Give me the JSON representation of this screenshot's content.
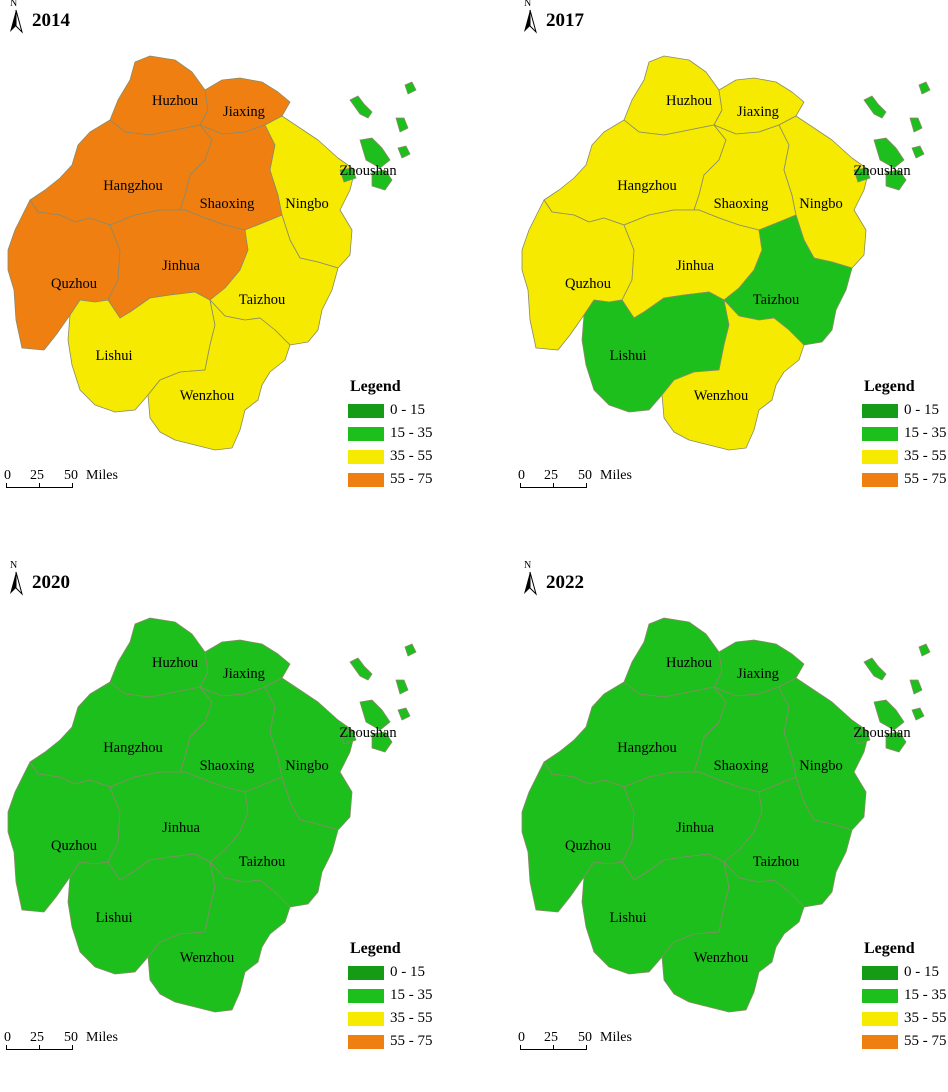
{
  "legend": {
    "title": "Legend",
    "classes": [
      {
        "label": "0 - 15",
        "color": "#169b16"
      },
      {
        "label": "15 - 35",
        "color": "#1cbf1c"
      },
      {
        "label": "35 - 55",
        "color": "#f5ea00"
      },
      {
        "label": "55 - 75",
        "color": "#f07f12"
      }
    ]
  },
  "north_label": "N",
  "scale": {
    "t0": "0",
    "t25": "25",
    "t50": "50",
    "unit": "Miles"
  },
  "cities": {
    "huzhou": "Huzhou",
    "jiaxing": "Jiaxing",
    "hangzhou": "Hangzhou",
    "shaoxing": "Shaoxing",
    "ningbo": "Ningbo",
    "zhoushan": "Zhoushan",
    "quzhou": "Quzhou",
    "jinhua": "Jinhua",
    "taizhou": "Taizhou",
    "lishui": "Lishui",
    "wenzhou": "Wenzhou"
  },
  "panels": [
    {
      "year": "2014",
      "classes": {
        "huzhou": 3,
        "jiaxing": 3,
        "hangzhou": 3,
        "shaoxing": 3,
        "quzhou": 3,
        "jinhua": 3,
        "ningbo": 2,
        "taizhou": 2,
        "lishui": 2,
        "wenzhou": 2,
        "zhoushan": 1
      }
    },
    {
      "year": "2017",
      "classes": {
        "huzhou": 2,
        "jiaxing": 2,
        "hangzhou": 2,
        "shaoxing": 2,
        "quzhou": 2,
        "jinhua": 2,
        "ningbo": 2,
        "wenzhou": 2,
        "taizhou": 1,
        "lishui": 1,
        "zhoushan": 1
      }
    },
    {
      "year": "2020",
      "classes": {
        "huzhou": 1,
        "jiaxing": 1,
        "hangzhou": 1,
        "shaoxing": 1,
        "quzhou": 1,
        "jinhua": 1,
        "ningbo": 1,
        "taizhou": 1,
        "lishui": 1,
        "wenzhou": 1,
        "zhoushan": 1
      }
    },
    {
      "year": "2022",
      "classes": {
        "huzhou": 1,
        "jiaxing": 1,
        "hangzhou": 1,
        "shaoxing": 1,
        "quzhou": 1,
        "jinhua": 1,
        "ningbo": 1,
        "taizhou": 1,
        "lishui": 1,
        "wenzhou": 1,
        "zhoushan": 1
      }
    }
  ]
}
